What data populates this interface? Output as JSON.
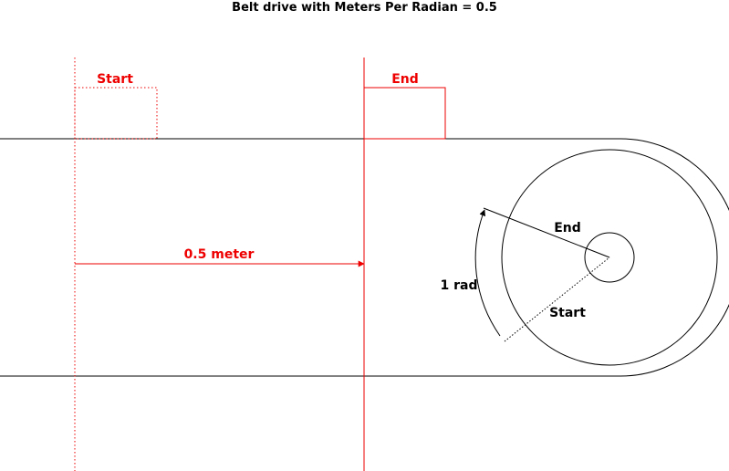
{
  "title": "Belt drive with Meters Per Radian = 0.5",
  "labels": {
    "belt_start": "Start",
    "belt_end": "End",
    "distance": "0.5 meter",
    "angle": "1 rad",
    "pulley_end": "End",
    "pulley_start": "Start"
  },
  "colors": {
    "highlight": "#ee0000",
    "line": "#000000"
  }
}
